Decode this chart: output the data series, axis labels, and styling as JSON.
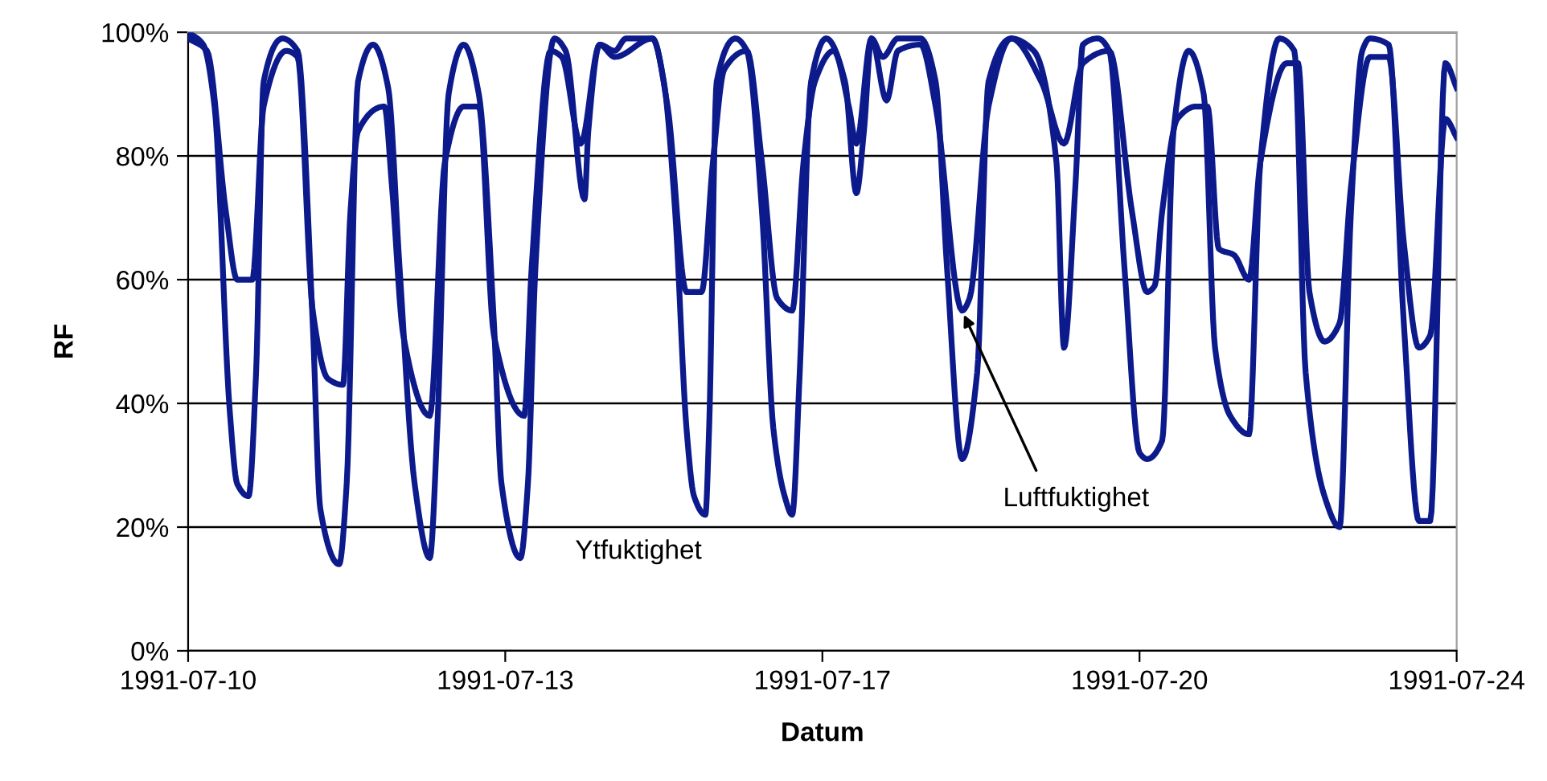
{
  "chart_data": {
    "type": "line",
    "xlabel": "Datum",
    "ylabel": "RF",
    "xlim": [
      "1991-07-10T00:00",
      "1991-07-24T00:00"
    ],
    "xticks": [
      {
        "value": "1991-07-10T00:00",
        "label": "1991-07-10"
      },
      {
        "value": "1991-07-13T12:00",
        "label": "1991-07-13"
      },
      {
        "value": "1991-07-17T00:00",
        "label": "1991-07-17"
      },
      {
        "value": "1991-07-20T12:00",
        "label": "1991-07-20"
      },
      {
        "value": "1991-07-24T00:00",
        "label": "1991-07-24"
      }
    ],
    "ylim": [
      0,
      100
    ],
    "yticks": [
      {
        "value": 0,
        "label": "0%"
      },
      {
        "value": 20,
        "label": "20%"
      },
      {
        "value": 40,
        "label": "40%"
      },
      {
        "value": 60,
        "label": "60%"
      },
      {
        "value": 80,
        "label": "80%"
      },
      {
        "value": 100,
        "label": "100%"
      }
    ],
    "grid": "y",
    "legend": false,
    "marker": "none",
    "line_style": "solid",
    "series": [
      {
        "color": "#0c1a8c",
        "x": [
          "1991-07-10T00:00",
          "1991-07-10T04:00",
          "1991-07-10T07:00",
          "1991-07-10T11:00",
          "1991-07-10T13:00",
          "1991-07-10T16:00",
          "1991-07-10T18:00",
          "1991-07-10T20:00",
          "1991-07-11T01:00",
          "1991-07-11T05:00",
          "1991-07-11T09:00",
          "1991-07-11T11:00",
          "1991-07-11T16:00",
          "1991-07-11T18:00",
          "1991-07-11T21:00",
          "1991-07-12T01:00",
          "1991-07-12T05:00",
          "1991-07-12T08:00",
          "1991-07-12T12:00",
          "1991-07-12T16:00",
          "1991-07-12T18:00",
          "1991-07-12T21:00",
          "1991-07-13T01:00",
          "1991-07-13T05:00",
          "1991-07-13T09:00",
          "1991-07-13T11:00",
          "1991-07-13T16:00",
          "1991-07-13T18:00",
          "1991-07-13T20:00",
          "1991-07-14T01:00",
          "1991-07-14T04:00",
          "1991-07-14T09:00",
          "1991-07-14T10:00",
          "1991-07-14T13:00",
          "1991-07-14T17:00",
          "1991-07-14T20:00",
          "1991-07-15T03:00",
          "1991-07-15T06:00",
          "1991-07-15T09:00",
          "1991-07-15T12:00",
          "1991-07-15T14:00",
          "1991-07-15T17:00",
          "1991-07-15T18:00",
          "1991-07-15T20:00",
          "1991-07-16T01:00",
          "1991-07-16T04:00",
          "1991-07-16T08:00",
          "1991-07-16T11:00",
          "1991-07-16T14:00",
          "1991-07-16T16:00",
          "1991-07-16T18:00",
          "1991-07-16T21:00",
          "1991-07-17T01:00",
          "1991-07-17T06:00",
          "1991-07-17T09:00",
          "1991-07-17T11:00",
          "1991-07-17T13:00",
          "1991-07-17T16:00",
          "1991-07-17T20:00",
          "1991-07-18T02:00",
          "1991-07-18T06:00",
          "1991-07-18T09:00",
          "1991-07-18T13:00",
          "1991-07-18T17:00",
          "1991-07-18T20:00",
          "1991-07-19T02:00",
          "1991-07-19T08:00",
          "1991-07-19T14:00",
          "1991-07-19T16:00",
          "1991-07-19T19:00",
          "1991-07-19T21:00",
          "1991-07-20T01:00",
          "1991-07-20T04:00",
          "1991-07-20T08:00",
          "1991-07-20T12:00",
          "1991-07-20T14:00",
          "1991-07-20T18:00",
          "1991-07-20T21:00",
          "1991-07-21T01:00",
          "1991-07-21T05:00",
          "1991-07-21T08:00",
          "1991-07-21T12:00",
          "1991-07-21T17:00",
          "1991-07-21T20:00",
          "1991-07-22T01:00",
          "1991-07-22T05:00",
          "1991-07-22T08:00",
          "1991-07-22T13:00",
          "1991-07-22T17:00",
          "1991-07-22T20:00",
          "1991-07-22T23:00",
          "1991-07-23T01:00",
          "1991-07-23T06:00",
          "1991-07-23T10:00",
          "1991-07-23T14:00",
          "1991-07-23T17:00",
          "1991-07-23T21:00",
          "1991-07-24T00:00"
        ],
        "values": [
          100,
          98,
          88,
          39,
          27,
          25,
          45,
          92,
          99,
          97,
          53,
          23,
          14,
          27,
          92,
          98,
          91,
          62,
          27,
          15,
          36,
          90,
          98,
          90,
          53,
          27,
          15,
          27,
          62,
          99,
          97,
          73,
          84,
          98,
          97,
          99,
          99,
          92,
          71,
          36,
          25,
          22,
          36,
          92,
          99,
          97,
          71,
          36,
          25,
          22,
          45,
          92,
          99,
          92,
          74,
          84,
          99,
          96,
          99,
          99,
          92,
          62,
          31,
          45,
          92,
          99,
          97,
          79,
          49,
          75,
          98,
          99,
          97,
          62,
          32,
          31,
          34,
          84,
          97,
          90,
          49,
          38,
          35,
          79,
          99,
          97,
          45,
          25,
          20,
          71,
          97,
          99,
          98,
          53,
          21,
          21,
          95,
          91
        ]
      },
      {
        "color": "#0c1a8c",
        "x": [
          "1991-07-10T00:00",
          "1991-07-10T05:00",
          "1991-07-10T10:00",
          "1991-07-10T13:00",
          "1991-07-10T17:00",
          "1991-07-10T20:00",
          "1991-07-11T02:00",
          "1991-07-11T05:00",
          "1991-07-11T09:00",
          "1991-07-11T13:00",
          "1991-07-11T17:00",
          "1991-07-11T19:00",
          "1991-07-11T21:00",
          "1991-07-12T04:00",
          "1991-07-12T06:00",
          "1991-07-12T09:00",
          "1991-07-12T16:00",
          "1991-07-12T20:00",
          "1991-07-13T01:00",
          "1991-07-13T05:00",
          "1991-07-13T09:00",
          "1991-07-13T17:00",
          "1991-07-13T19:00",
          "1991-07-14T00:00",
          "1991-07-14T03:00",
          "1991-07-14T08:00",
          "1991-07-14T13:00",
          "1991-07-14T17:00",
          "1991-07-15T03:00",
          "1991-07-15T07:00",
          "1991-07-15T12:00",
          "1991-07-15T16:00",
          "1991-07-15T19:00",
          "1991-07-15T22:00",
          "1991-07-16T04:00",
          "1991-07-16T08:00",
          "1991-07-16T12:00",
          "1991-07-16T16:00",
          "1991-07-16T19:00",
          "1991-07-16T22:00",
          "1991-07-17T03:00",
          "1991-07-17T07:00",
          "1991-07-17T09:00",
          "1991-07-17T13:00",
          "1991-07-17T17:00",
          "1991-07-17T20:00",
          "1991-07-18T02:00",
          "1991-07-18T06:00",
          "1991-07-18T13:00",
          "1991-07-18T15:00",
          "1991-07-18T20:00",
          "1991-07-19T02:00",
          "1991-07-19T10:00",
          "1991-07-19T16:00",
          "1991-07-19T21:00",
          "1991-07-20T04:00",
          "1991-07-20T10:00",
          "1991-07-20T14:00",
          "1991-07-20T16:00",
          "1991-07-20T18:00",
          "1991-07-20T22:00",
          "1991-07-21T03:00",
          "1991-07-21T06:00",
          "1991-07-21T09:00",
          "1991-07-21T13:00",
          "1991-07-21T17:00",
          "1991-07-21T20:00",
          "1991-07-22T03:00",
          "1991-07-22T06:00",
          "1991-07-22T09:00",
          "1991-07-22T13:00",
          "1991-07-22T17:00",
          "1991-07-22T20:00",
          "1991-07-23T01:00",
          "1991-07-23T06:00",
          "1991-07-23T10:00",
          "1991-07-23T14:00",
          "1991-07-23T17:00",
          "1991-07-23T21:00",
          "1991-07-24T00:00"
        ],
        "values": [
          99,
          97,
          71,
          60,
          60,
          88,
          97,
          96,
          55,
          44,
          43,
          71,
          84,
          88,
          75,
          51,
          38,
          79,
          88,
          88,
          51,
          38,
          62,
          97,
          96,
          82,
          98,
          96,
          99,
          88,
          58,
          58,
          79,
          94,
          97,
          79,
          57,
          55,
          79,
          92,
          97,
          88,
          82,
          99,
          89,
          97,
          98,
          88,
          55,
          57,
          88,
          99,
          92,
          82,
          95,
          97,
          71,
          58,
          59,
          71,
          86,
          88,
          88,
          65,
          64,
          60,
          79,
          95,
          95,
          58,
          50,
          53,
          75,
          96,
          96,
          66,
          49,
          51,
          86,
          83
        ]
      }
    ],
    "annotations": [
      "Ytfuktighet",
      {
        "text": "Luftfuktighet",
        "x": "1991-07-18T13:00",
        "y": 55
      }
    ]
  }
}
